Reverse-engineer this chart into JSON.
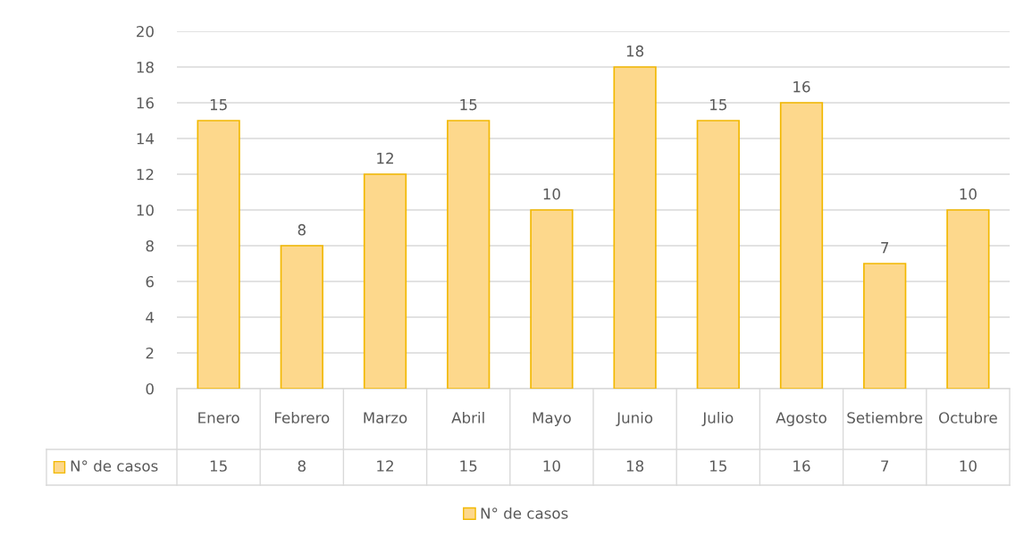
{
  "chart_data": {
    "type": "bar",
    "categories": [
      "Enero",
      "Febrero",
      "Marzo",
      "Abril",
      "Mayo",
      "Junio",
      "Julio",
      "Agosto",
      "Setiembre",
      "Octubre"
    ],
    "series": [
      {
        "name": "N° de casos",
        "color": "#fdd88c",
        "values": [
          15,
          8,
          12,
          15,
          10,
          18,
          15,
          16,
          7,
          10
        ],
        "value_labels": [
          "15",
          "8",
          "12",
          "15",
          "10",
          "18",
          "15",
          "16",
          "7",
          "10"
        ]
      }
    ],
    "annotations": [
      "15",
      "8",
      "12",
      "15",
      "10",
      "18",
      "15",
      "16",
      "7",
      "10"
    ],
    "ylim": [
      0,
      20
    ],
    "yticks": [
      0,
      2,
      4,
      6,
      8,
      10,
      12,
      14,
      16,
      18,
      20
    ],
    "grid": "y",
    "data_labels": true,
    "legend": "bottom"
  }
}
